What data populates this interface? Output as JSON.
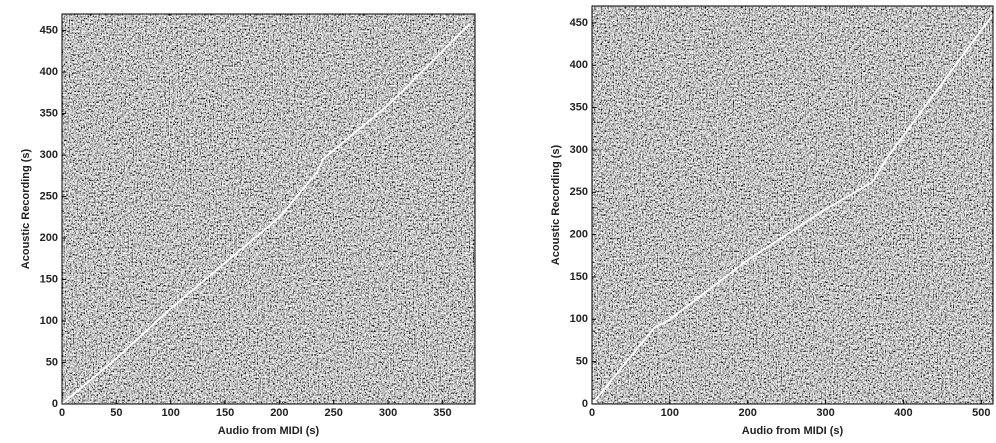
{
  "chart_data": [
    {
      "type": "line",
      "xlabel": "Audio from MIDI (s)",
      "ylabel": "Acoustic Recording (s)",
      "xlim": [
        0,
        380
      ],
      "ylim": [
        0,
        470
      ],
      "xticks": [
        0,
        50,
        100,
        150,
        200,
        250,
        300,
        350
      ],
      "yticks": [
        0,
        50,
        100,
        150,
        200,
        250,
        300,
        350,
        400,
        450
      ],
      "series": [
        {
          "color": "#ffffff",
          "x": [
            0,
            50,
            100,
            150,
            200,
            235,
            240,
            300,
            375
          ],
          "values": [
            0,
            55,
            115,
            170,
            225,
            280,
            295,
            360,
            458
          ]
        }
      ]
    },
    {
      "type": "line",
      "xlabel": "Audio from MIDI (s)",
      "ylabel": "Acoustic Recording (s)",
      "xlim": [
        0,
        515
      ],
      "ylim": [
        0,
        470
      ],
      "xticks": [
        0,
        100,
        200,
        300,
        400,
        500
      ],
      "yticks": [
        0,
        50,
        100,
        150,
        200,
        250,
        300,
        350,
        400,
        450
      ],
      "series": [
        {
          "color": "#ffffff",
          "x": [
            0,
            80,
            100,
            200,
            300,
            360,
            380,
            515
          ],
          "values": [
            0,
            90,
            100,
            170,
            230,
            262,
            292,
            460
          ]
        }
      ]
    }
  ]
}
